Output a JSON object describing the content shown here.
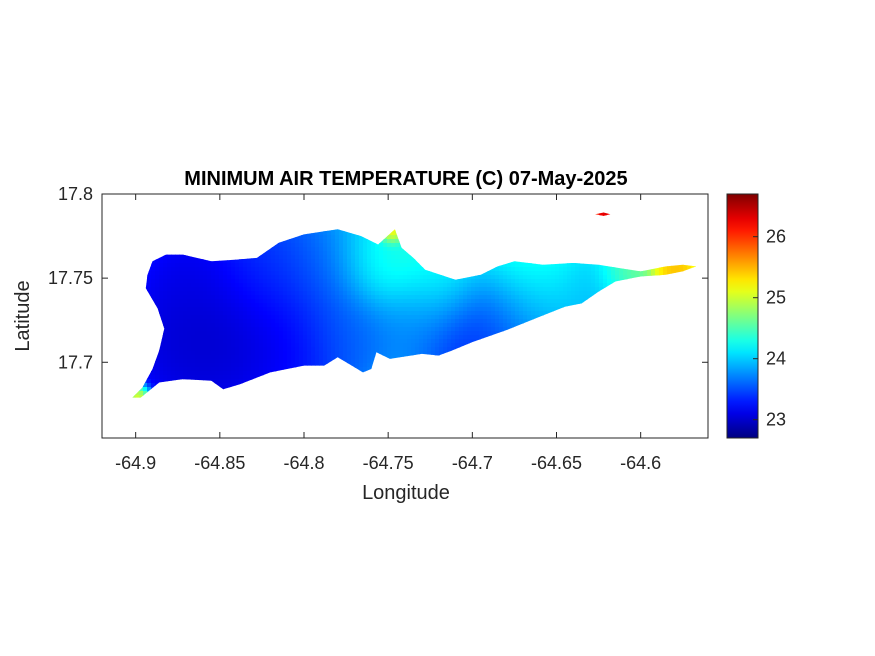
{
  "chart_data": {
    "type": "heatmap",
    "title": "MINIMUM AIR TEMPERATURE (C) 07-May-2025",
    "xlabel": "Longitude",
    "ylabel": "Latitude",
    "xlim": [
      -64.92,
      -64.56
    ],
    "ylim": [
      17.655,
      17.8
    ],
    "xticks": [
      -64.9,
      -64.85,
      -64.8,
      -64.75,
      -64.7,
      -64.65,
      -64.6
    ],
    "xtick_labels": [
      "-64.9",
      "-64.85",
      "-64.8",
      "-64.75",
      "-64.7",
      "-64.65",
      "-64.6"
    ],
    "yticks": [
      17.7,
      17.75,
      17.8
    ],
    "ytick_labels": [
      "17.7",
      "17.75",
      "17.8"
    ],
    "colorbar": {
      "range": [
        22.7,
        26.7
      ],
      "ticks": [
        23,
        24,
        25,
        26
      ],
      "tick_labels": [
        "23",
        "24",
        "25",
        "26"
      ],
      "colormap": "jet"
    },
    "grid": false,
    "island_outline": [
      [
        -64.897,
        17.679
      ],
      [
        -64.886,
        17.688
      ],
      [
        -64.872,
        17.69
      ],
      [
        -64.855,
        17.689
      ],
      [
        -64.848,
        17.684
      ],
      [
        -64.838,
        17.687
      ],
      [
        -64.82,
        17.694
      ],
      [
        -64.8,
        17.698
      ],
      [
        -64.788,
        17.698
      ],
      [
        -64.78,
        17.703
      ],
      [
        -64.77,
        17.697
      ],
      [
        -64.765,
        17.694
      ],
      [
        -64.76,
        17.696
      ],
      [
        -64.757,
        17.706
      ],
      [
        -64.749,
        17.702
      ],
      [
        -64.73,
        17.705
      ],
      [
        -64.72,
        17.704
      ],
      [
        -64.712,
        17.707
      ],
      [
        -64.7,
        17.712
      ],
      [
        -64.68,
        17.719
      ],
      [
        -64.66,
        17.727
      ],
      [
        -64.645,
        17.733
      ],
      [
        -64.635,
        17.735
      ],
      [
        -64.625,
        17.742
      ],
      [
        -64.615,
        17.748
      ],
      [
        -64.6,
        17.751
      ],
      [
        -64.585,
        17.752
      ],
      [
        -64.575,
        17.754
      ],
      [
        -64.567,
        17.757
      ],
      [
        -64.575,
        17.758
      ],
      [
        -64.585,
        17.757
      ],
      [
        -64.6,
        17.754
      ],
      [
        -64.613,
        17.756
      ],
      [
        -64.625,
        17.758
      ],
      [
        -64.64,
        17.759
      ],
      [
        -64.658,
        17.758
      ],
      [
        -64.675,
        17.76
      ],
      [
        -64.685,
        17.757
      ],
      [
        -64.695,
        17.752
      ],
      [
        -64.71,
        17.749
      ],
      [
        -64.728,
        17.755
      ],
      [
        -64.735,
        17.762
      ],
      [
        -64.742,
        17.768
      ],
      [
        -64.746,
        17.779
      ],
      [
        -64.756,
        17.77
      ],
      [
        -64.766,
        17.775
      ],
      [
        -64.78,
        17.779
      ],
      [
        -64.8,
        17.776
      ],
      [
        -64.815,
        17.771
      ],
      [
        -64.828,
        17.762
      ],
      [
        -64.84,
        17.761
      ],
      [
        -64.855,
        17.76
      ],
      [
        -64.872,
        17.764
      ],
      [
        -64.882,
        17.764
      ],
      [
        -64.89,
        17.76
      ],
      [
        -64.893,
        17.752
      ],
      [
        -64.894,
        17.744
      ],
      [
        -64.887,
        17.732
      ],
      [
        -64.883,
        17.72
      ],
      [
        -64.886,
        17.707
      ],
      [
        -64.89,
        17.696
      ],
      [
        -64.896,
        17.685
      ],
      [
        -64.902,
        17.679
      ]
    ],
    "cay_outline": [
      [
        -64.627,
        17.788
      ],
      [
        -64.622,
        17.789
      ],
      [
        -64.618,
        17.788
      ],
      [
        -64.622,
        17.787
      ]
    ],
    "temperature_centers": [
      {
        "lon": -64.845,
        "lat": 17.726,
        "temp": 22.8,
        "spread": 0.034
      },
      {
        "lon": -64.868,
        "lat": 17.748,
        "temp": 23.1,
        "spread": 0.018
      },
      {
        "lon": -64.87,
        "lat": 17.705,
        "temp": 23.0,
        "spread": 0.022
      },
      {
        "lon": -64.825,
        "lat": 17.755,
        "temp": 23.5,
        "spread": 0.02
      },
      {
        "lon": -64.808,
        "lat": 17.72,
        "temp": 23.2,
        "spread": 0.024
      },
      {
        "lon": -64.785,
        "lat": 17.75,
        "temp": 23.7,
        "spread": 0.02
      },
      {
        "lon": -64.773,
        "lat": 17.718,
        "temp": 23.6,
        "spread": 0.016
      },
      {
        "lon": -64.735,
        "lat": 17.725,
        "temp": 23.7,
        "spread": 0.016
      },
      {
        "lon": -64.7,
        "lat": 17.716,
        "temp": 23.2,
        "spread": 0.02
      },
      {
        "lon": -64.675,
        "lat": 17.724,
        "temp": 23.6,
        "spread": 0.02
      },
      {
        "lon": -64.645,
        "lat": 17.735,
        "temp": 23.8,
        "spread": 0.02
      },
      {
        "lon": -64.625,
        "lat": 17.746,
        "temp": 23.9,
        "spread": 0.012
      },
      {
        "lon": -64.755,
        "lat": 17.755,
        "temp": 24.4,
        "spread": 0.015
      },
      {
        "lon": -64.72,
        "lat": 17.745,
        "temp": 24.3,
        "spread": 0.016
      },
      {
        "lon": -64.66,
        "lat": 17.75,
        "temp": 24.5,
        "spread": 0.02
      },
      {
        "lon": -64.61,
        "lat": 17.752,
        "temp": 24.8,
        "spread": 0.01
      },
      {
        "lon": -64.58,
        "lat": 17.755,
        "temp": 25.6,
        "spread": 0.008
      },
      {
        "lon": -64.748,
        "lat": 17.778,
        "temp": 25.6,
        "spread": 0.004
      },
      {
        "lon": -64.898,
        "lat": 17.68,
        "temp": 25.8,
        "spread": 0.004
      },
      {
        "lon": -64.622,
        "lat": 17.788,
        "temp": 26.7,
        "spread": 0.004
      }
    ],
    "background_temp": 24.3
  }
}
